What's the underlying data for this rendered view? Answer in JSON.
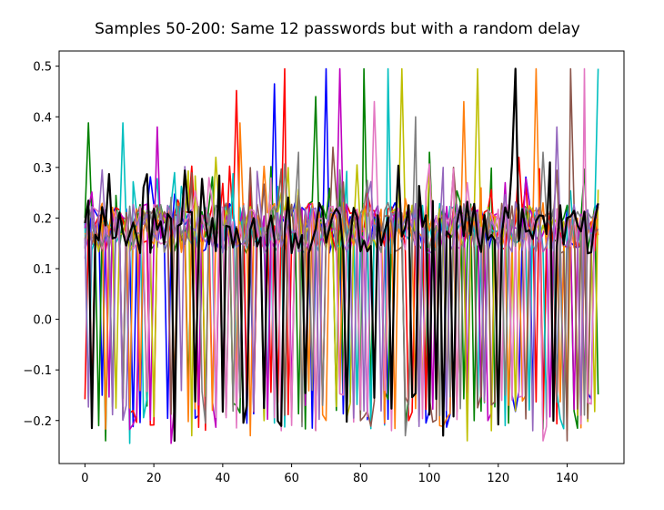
{
  "chart_data": {
    "type": "line",
    "title": "Samples 50-200: Same 12 passwords but with a random delay",
    "xlabel": "",
    "ylabel": "",
    "xlim": [
      -7.5,
      156.5
    ],
    "ylim": [
      -0.285,
      0.53
    ],
    "xticks": [
      0,
      20,
      40,
      60,
      80,
      100,
      120,
      140
    ],
    "yticks": [
      -0.2,
      -0.1,
      0.0,
      0.1,
      0.2,
      0.3,
      0.4,
      0.5
    ],
    "ytick_labels": [
      "−0.2",
      "−0.1",
      "0.0",
      "0.1",
      "0.2",
      "0.3",
      "0.4",
      "0.5"
    ],
    "n_points": 150,
    "grid": false,
    "series": [
      {
        "color": "#0000ff",
        "start": 0.19,
        "peaks": [
          [
            55,
            0.465
          ],
          [
            70,
            0.495
          ]
        ],
        "dips": [
          [
            5,
            -0.15
          ],
          [
            33,
            -0.19
          ],
          [
            66,
            -0.215
          ],
          [
            99,
            -0.205
          ],
          [
            124,
            -0.15
          ]
        ]
      },
      {
        "color": "#008000",
        "start": 0.2,
        "peaks": [
          [
            1,
            0.388
          ],
          [
            67,
            0.44
          ],
          [
            81,
            0.495
          ],
          [
            100,
            0.33
          ]
        ],
        "dips": [
          [
            4,
            -0.21
          ],
          [
            6,
            -0.24
          ],
          [
            41,
            -0.19
          ],
          [
            113,
            -0.2
          ]
        ]
      },
      {
        "color": "#ff0000",
        "start": -0.158,
        "peaks": [
          [
            44,
            0.452
          ],
          [
            58,
            0.495
          ],
          [
            126,
            0.32
          ]
        ],
        "dips": [
          [
            2,
            -0.158
          ],
          [
            13,
            -0.185
          ],
          [
            47,
            -0.17
          ],
          [
            94,
            -0.2
          ]
        ]
      },
      {
        "color": "#00bfbf",
        "start": 0.19,
        "peaks": [
          [
            11,
            0.388
          ],
          [
            88,
            0.495
          ],
          [
            149,
            0.495
          ]
        ],
        "dips": [
          [
            13,
            -0.245
          ],
          [
            38,
            -0.2
          ],
          [
            122,
            -0.21
          ]
        ]
      },
      {
        "color": "#bf00bf",
        "start": 0.18,
        "peaks": [
          [
            21,
            0.38
          ],
          [
            74,
            0.495
          ],
          [
            122,
            0.27
          ]
        ],
        "dips": [
          [
            25,
            -0.245
          ],
          [
            64,
            -0.17
          ],
          [
            117,
            -0.2
          ]
        ]
      },
      {
        "color": "#bfbf00",
        "start": 0.15,
        "peaks": [
          [
            38,
            0.32
          ],
          [
            92,
            0.495
          ],
          [
            114,
            0.495
          ]
        ],
        "dips": [
          [
            31,
            -0.23
          ],
          [
            52,
            -0.2
          ],
          [
            111,
            -0.24
          ]
        ]
      },
      {
        "color": "#ff7f0e",
        "start": 0.17,
        "peaks": [
          [
            45,
            0.388
          ],
          [
            110,
            0.43
          ],
          [
            131,
            0.495
          ]
        ],
        "dips": [
          [
            48,
            -0.23
          ],
          [
            136,
            -0.16
          ]
        ]
      },
      {
        "color": "#8c564b",
        "start": 0.16,
        "peaks": [
          [
            72,
            0.34
          ],
          [
            107,
            0.3
          ],
          [
            141,
            0.495
          ]
        ],
        "dips": [
          [
            80,
            -0.2
          ],
          [
            140,
            -0.24
          ]
        ]
      },
      {
        "color": "#e377c2",
        "start": 0.12,
        "peaks": [
          [
            36,
            0.28
          ],
          [
            84,
            0.43
          ],
          [
            145,
            0.495
          ]
        ],
        "dips": [
          [
            57,
            -0.22
          ],
          [
            89,
            -0.22
          ],
          [
            133,
            -0.24
          ]
        ]
      },
      {
        "color": "#7f7f7f",
        "start": 0.14,
        "peaks": [
          [
            62,
            0.33
          ],
          [
            96,
            0.4
          ],
          [
            133,
            0.33
          ]
        ],
        "dips": [
          [
            69,
            -0.17
          ],
          [
            93,
            -0.23
          ]
        ]
      },
      {
        "color": "#9467bd",
        "start": 0.16,
        "peaks": [
          [
            39,
            0.28
          ],
          [
            104,
            0.3
          ],
          [
            137,
            0.38
          ]
        ],
        "dips": [
          [
            105,
            -0.18
          ],
          [
            130,
            -0.22
          ]
        ]
      },
      {
        "color": "#000000",
        "width": 2.2,
        "start": 0.19,
        "peaks": [
          [
            7,
            0.287
          ],
          [
            29,
            0.294
          ],
          [
            125,
            0.495
          ],
          [
            135,
            0.31
          ]
        ],
        "dips": [
          [
            2,
            -0.215
          ],
          [
            26,
            -0.24
          ],
          [
            104,
            -0.23
          ]
        ]
      }
    ]
  }
}
